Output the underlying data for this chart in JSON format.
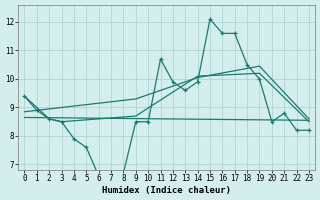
{
  "xlabel": "Humidex (Indice chaleur)",
  "bg_color": "#d4eeee",
  "grid_color": "#aed4d4",
  "line_color": "#1a7a6e",
  "xlim": [
    -0.5,
    23.5
  ],
  "ylim": [
    6.8,
    12.6
  ],
  "yticks": [
    7,
    8,
    9,
    10,
    11,
    12
  ],
  "xticks": [
    0,
    1,
    2,
    3,
    4,
    5,
    6,
    7,
    8,
    9,
    10,
    11,
    12,
    13,
    14,
    15,
    16,
    17,
    18,
    19,
    20,
    21,
    22,
    23
  ],
  "line1_x": [
    0,
    1,
    2,
    3,
    4,
    5,
    6,
    7,
    8,
    9,
    10,
    11,
    12,
    13,
    14,
    15,
    16,
    17,
    18,
    19,
    20,
    21,
    22,
    23
  ],
  "line1_y": [
    9.4,
    8.9,
    8.6,
    8.5,
    7.9,
    7.6,
    6.6,
    6.55,
    6.7,
    8.5,
    8.5,
    10.7,
    9.9,
    9.6,
    9.9,
    12.1,
    11.6,
    11.6,
    10.5,
    10.0,
    8.5,
    8.8,
    8.2,
    8.2
  ],
  "line2_x": [
    0,
    2,
    3,
    9,
    14,
    19,
    23
  ],
  "line2_y": [
    9.4,
    8.6,
    8.5,
    8.7,
    10.1,
    10.2,
    8.5
  ],
  "line3_x": [
    0,
    9,
    14,
    19,
    23
  ],
  "line3_y": [
    8.85,
    9.3,
    10.05,
    10.45,
    8.6
  ],
  "line4_x": [
    0,
    23
  ],
  "line4_y": [
    8.65,
    8.55
  ],
  "xlabel_fontsize": 6.5,
  "tick_fontsize": 5.5
}
